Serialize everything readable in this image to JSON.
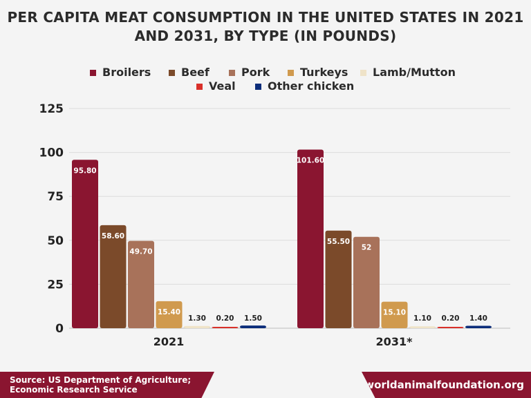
{
  "chart_data": {
    "type": "bar",
    "title": "PER CAPITA MEAT CONSUMPTION IN THE UNITED STATES IN 2021 AND 2031, BY TYPE (IN POUNDS)",
    "categories": [
      "2021",
      "2031*"
    ],
    "series": [
      {
        "name": "Broilers",
        "color": "#8a1530",
        "values": [
          95.8,
          101.6
        ],
        "labels": [
          "95.80",
          "101.60"
        ]
      },
      {
        "name": "Beef",
        "color": "#7b4a2a",
        "values": [
          58.6,
          55.5
        ],
        "labels": [
          "58.60",
          "55.50"
        ]
      },
      {
        "name": "Pork",
        "color": "#a8725a",
        "values": [
          49.7,
          52
        ],
        "labels": [
          "49.70",
          "52"
        ]
      },
      {
        "name": "Turkeys",
        "color": "#d09a4e",
        "values": [
          15.4,
          15.1
        ],
        "labels": [
          "15.40",
          "15.10"
        ]
      },
      {
        "name": "Lamb/Mutton",
        "color": "#efe3c8",
        "values": [
          1.3,
          1.1
        ],
        "labels": [
          "1.30",
          "1.10"
        ]
      },
      {
        "name": "Veal",
        "color": "#d9302a",
        "values": [
          0.2,
          0.2
        ],
        "labels": [
          "0.20",
          "0.20"
        ]
      },
      {
        "name": "Other chicken",
        "color": "#0c2d7a",
        "values": [
          1.5,
          1.4
        ],
        "labels": [
          "1.50",
          "1.40"
        ]
      }
    ],
    "ylim": [
      0,
      125
    ],
    "yticks": [
      "0",
      "25",
      "50",
      "75",
      "100",
      "125"
    ],
    "grid": true,
    "legend": "top"
  },
  "footer": {
    "source": "Source: US Department of Agriculture; Economic Research Service",
    "site": "worldanimalfoundation.org"
  }
}
